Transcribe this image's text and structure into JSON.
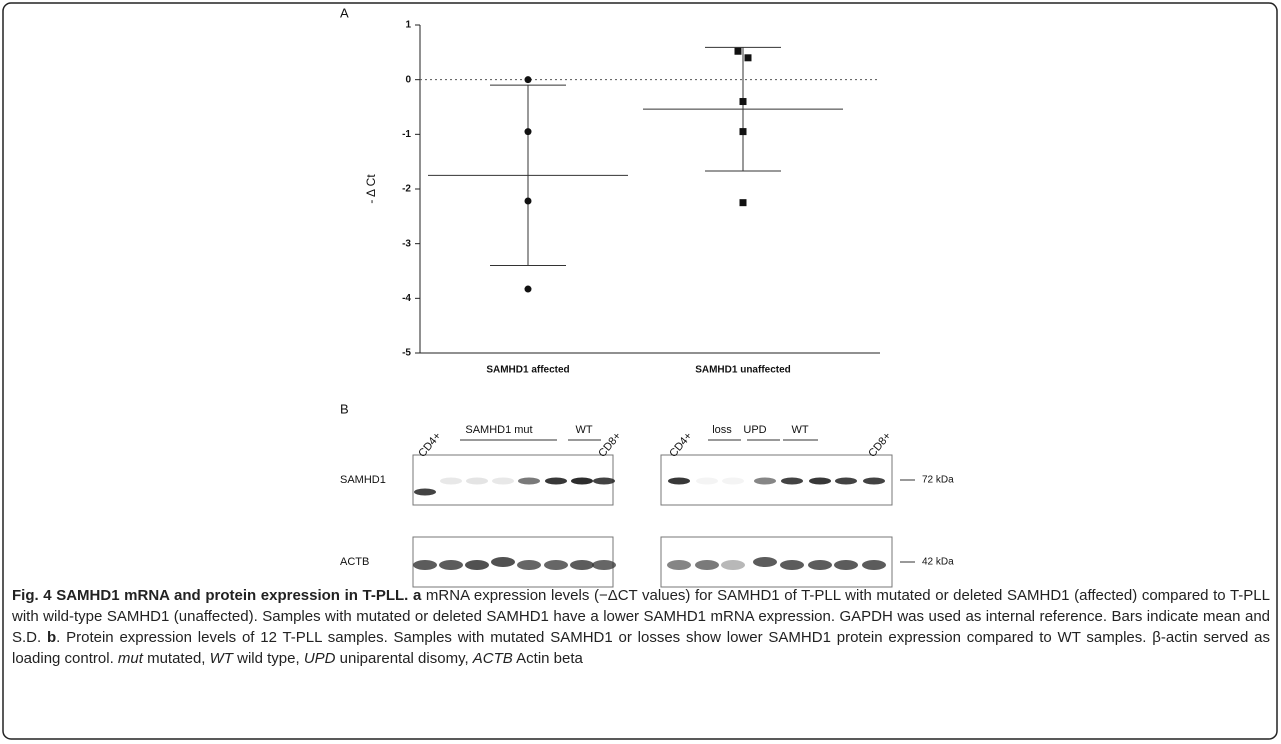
{
  "panel_a_label": "A",
  "chart_data": {
    "type": "scatter",
    "ylabel": "- Δ Ct",
    "categories": [
      "SAMHD1 affected",
      "SAMHD1 unaffected"
    ],
    "series": [
      {
        "marker": "circle",
        "color": "#111111",
        "values": [
          0,
          -0.95,
          -2.22,
          -3.83
        ]
      },
      {
        "marker": "square",
        "color": "#111111",
        "values": [
          0.52,
          0.4,
          -0.4,
          -0.95,
          -2.25
        ]
      }
    ],
    "means": [
      -1.75,
      -0.54
    ],
    "sd": [
      1.65,
      1.13
    ],
    "reference_line": 0,
    "ylim": [
      -5,
      1
    ],
    "yticks": [
      -5,
      -4,
      -3,
      -2,
      -1,
      0,
      1
    ]
  },
  "panel_b_label": "B",
  "blot": {
    "lane_labels": [
      "CD4+",
      "SAMHD1 mut",
      "WT",
      "CD8+",
      "CD4+",
      "loss",
      "UPD",
      "WT",
      "CD8+"
    ],
    "rows": [
      "SAMHD1",
      "ACTB"
    ],
    "sizes": [
      "72 kDa",
      "42 kDa"
    ]
  },
  "caption": [
    {
      "text": "Fig. 4 SAMHD1 mRNA and protein expression in T-PLL.",
      "style": "bold"
    },
    {
      "text": " ",
      "style": "normal"
    },
    {
      "text": "a",
      "style": "bold"
    },
    {
      "text": " mRNA expression levels (−ΔCT values) for SAMHD1 of T-PLL with mutated or deleted SAMHD1 (affected) compared to T-PLL with wild-type SAMHD1 (unaffected). Samples with mutated or deleted SAMHD1 have a lower SAMHD1 mRNA expression. GAPDH was used as internal reference. Bars indicate mean and S.D. ",
      "style": "normal"
    },
    {
      "text": "b",
      "style": "bold"
    },
    {
      "text": ". Protein expression levels of 12 T-PLL samples. Samples with mutated SAMHD1 or losses show lower SAMHD1 protein expression compared to WT samples. β-actin served as loading control. ",
      "style": "normal"
    },
    {
      "text": "mut",
      "style": "italic"
    },
    {
      "text": " mutated, ",
      "style": "normal"
    },
    {
      "text": "WT",
      "style": "italic"
    },
    {
      "text": " wild type, ",
      "style": "normal"
    },
    {
      "text": "UPD",
      "style": "italic"
    },
    {
      "text": " uniparental disomy, ",
      "style": "normal"
    },
    {
      "text": "ACTB",
      "style": "italic"
    },
    {
      "text": " Actin beta",
      "style": "normal"
    }
  ]
}
